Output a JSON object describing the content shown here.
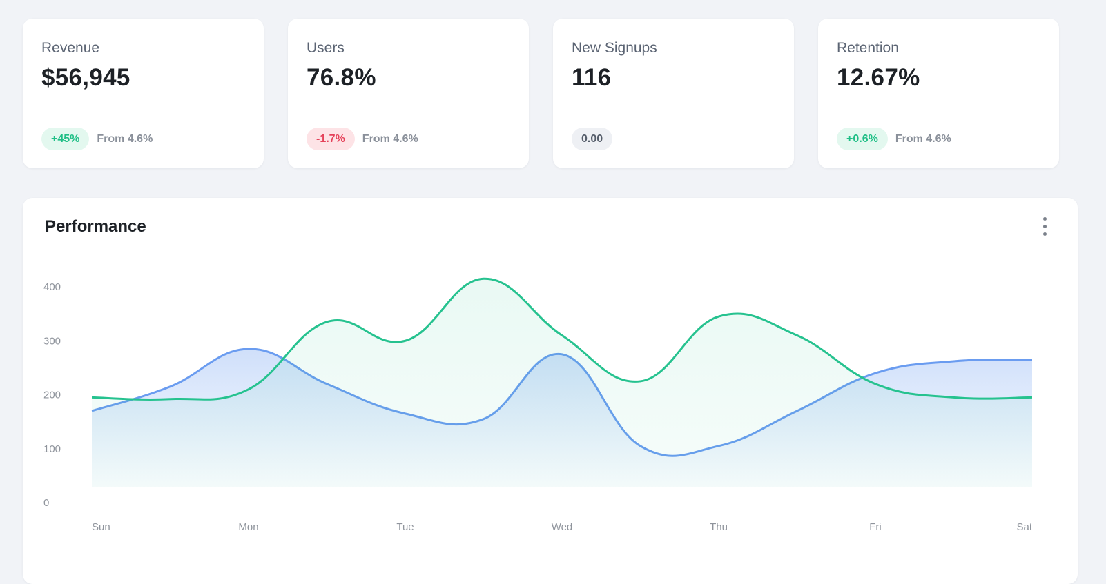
{
  "stats": [
    {
      "label": "Revenue",
      "value": "$56,945",
      "badge": "+45%",
      "trend": "up",
      "from": "From 4.6%"
    },
    {
      "label": "Users",
      "value": "76.8%",
      "badge": "-1.7%",
      "trend": "down",
      "from": "From 4.6%"
    },
    {
      "label": "New Signups",
      "value": "116",
      "badge": "0.00",
      "trend": "neutral",
      "from": ""
    },
    {
      "label": "Retention",
      "value": "12.67%",
      "badge": "+0.6%",
      "trend": "up",
      "from": "From 4.6%"
    }
  ],
  "panel": {
    "title": "Performance",
    "menu_icon": "kebab-menu-icon"
  },
  "colors": {
    "blue": "#6a9cf0",
    "green": "#26c28f",
    "badge_up": "#1fbf86",
    "badge_down": "#e5425a"
  },
  "chart_data": {
    "type": "area",
    "title": "",
    "xlabel": "",
    "ylabel": "",
    "x": [
      0,
      0.5,
      1,
      1.5,
      2,
      2.5,
      3,
      3.5,
      4,
      4.5,
      5,
      5.5,
      6
    ],
    "categories": [
      "Sun",
      "Mon",
      "Tue",
      "Wed",
      "Thu",
      "Fri",
      "Sat"
    ],
    "ylim": [
      0,
      400
    ],
    "yticks": [
      0,
      100,
      200,
      300,
      400
    ],
    "grid": false,
    "series": [
      {
        "color": "#6a9cf0",
        "values": [
          170,
          215,
          285,
          220,
          165,
          155,
          275,
          105,
          105,
          170,
          240,
          262,
          265
        ],
        "fill": "gradient"
      },
      {
        "color": "#26c28f",
        "values": [
          195,
          192,
          210,
          335,
          300,
          415,
          310,
          225,
          345,
          310,
          220,
          195,
          195
        ],
        "fill": "light"
      }
    ]
  }
}
